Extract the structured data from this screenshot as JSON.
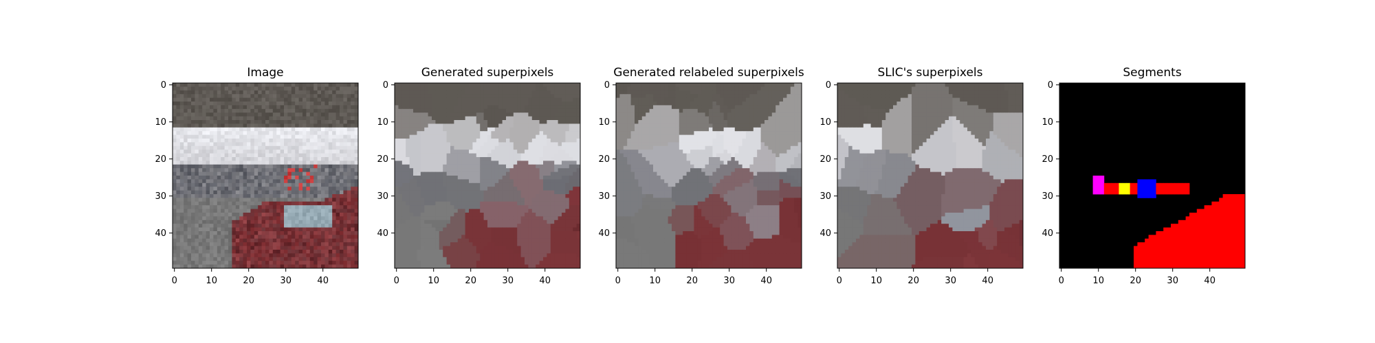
{
  "figure": {
    "panels": [
      {
        "title": "Image"
      },
      {
        "title": "Generated superpixels"
      },
      {
        "title": "Generated relabeled superpixels"
      },
      {
        "title": "SLIC's superpixels"
      },
      {
        "title": "Segments"
      }
    ]
  },
  "chart_data": [
    {
      "type": "heatmap",
      "title": "Image",
      "xlim": [
        -0.5,
        49.5
      ],
      "ylim": [
        49.5,
        -0.5
      ],
      "xticks": [
        0,
        10,
        20,
        30,
        40
      ],
      "yticks": [
        0,
        10,
        20,
        30,
        40
      ],
      "content": "photo of a street scene with a red car, buildings and sky"
    },
    {
      "type": "heatmap",
      "title": "Generated superpixels",
      "xlim": [
        -0.5,
        49.5
      ],
      "ylim": [
        49.5,
        -0.5
      ],
      "xticks": [
        0,
        10,
        20,
        30,
        40
      ],
      "yticks": [
        0,
        10,
        20,
        30,
        40
      ]
    },
    {
      "type": "heatmap",
      "title": "Generated relabeled superpixels",
      "xlim": [
        -0.5,
        49.5
      ],
      "ylim": [
        49.5,
        -0.5
      ],
      "xticks": [
        0,
        10,
        20,
        30,
        40
      ],
      "yticks": [
        0,
        10,
        20,
        30,
        40
      ]
    },
    {
      "type": "heatmap",
      "title": "SLIC's superpixels",
      "xlim": [
        -0.5,
        49.5
      ],
      "ylim": [
        49.5,
        -0.5
      ],
      "xticks": [
        0,
        10,
        20,
        30,
        40
      ],
      "yticks": [
        0,
        10,
        20,
        30,
        40
      ]
    },
    {
      "type": "heatmap",
      "title": "Segments",
      "xlim": [
        -0.5,
        49.5
      ],
      "ylim": [
        49.5,
        -0.5
      ],
      "xticks": [
        0,
        10,
        20,
        30,
        40
      ],
      "yticks": [
        0,
        10,
        20,
        30,
        40
      ],
      "segment_colors": [
        "#000000",
        "#ff0000",
        "#0000ff",
        "#ff00ff",
        "#ffff00",
        "#00ff00",
        "#ffffff"
      ]
    }
  ],
  "colors": {
    "sky": "#e8e9ee",
    "overpass": "#5f5a55",
    "road": "#787878",
    "car": "#8e3a3e",
    "segment_bg": "#000000",
    "segment_red": "#ff0000",
    "segment_blue": "#0000ff",
    "segment_magenta": "#ff00ff",
    "segment_yellow": "#ffff00",
    "segment_green": "#00ff00"
  }
}
